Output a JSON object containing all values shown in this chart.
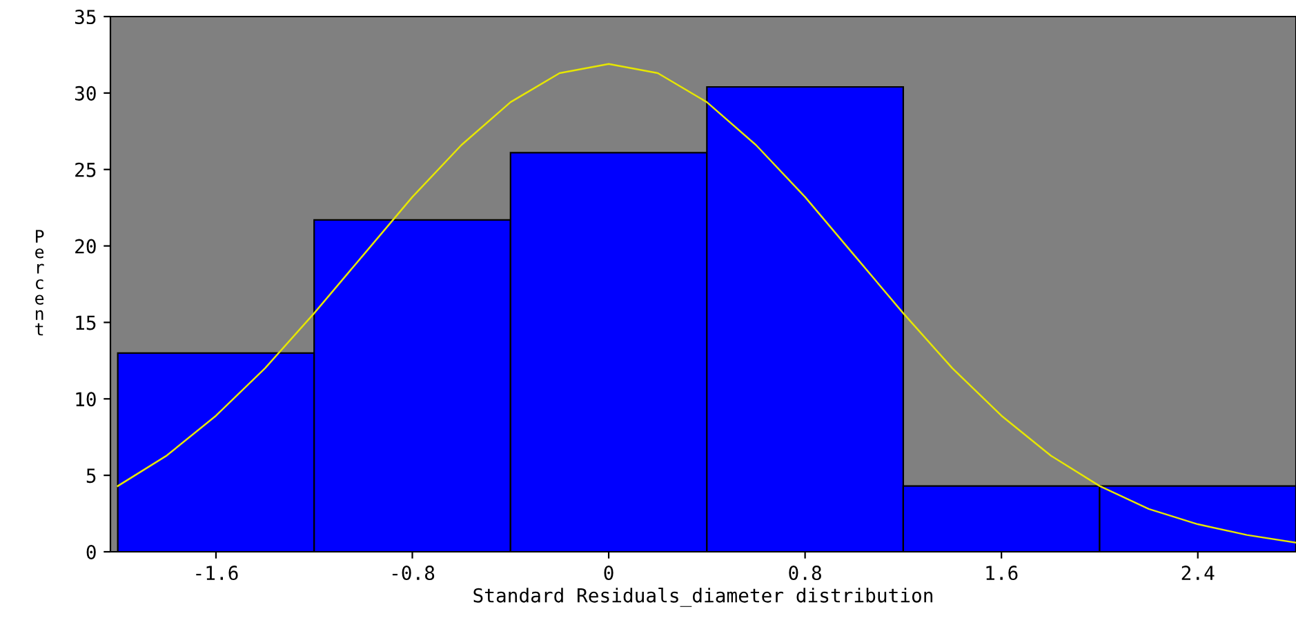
{
  "chart_data": {
    "type": "histogram",
    "xlabel": "Standard Residuals_diameter distribution",
    "ylabel": "Percent",
    "bins": [
      -2.0,
      -1.2,
      -0.4,
      0.4,
      1.2,
      2.0,
      2.8
    ],
    "values": [
      13.0,
      21.7,
      26.1,
      30.4,
      4.3,
      4.3
    ],
    "color": "#0000ff",
    "series": [
      {
        "type": "line",
        "color": "#e6e600",
        "x": [
          -2.0,
          -1.8,
          -1.6,
          -1.4,
          -1.2,
          -1.0,
          -0.8,
          -0.6,
          -0.4,
          -0.2,
          0.0,
          0.2,
          0.4,
          0.6,
          0.8,
          1.0,
          1.2,
          1.4,
          1.6,
          1.8,
          2.0,
          2.2,
          2.4,
          2.6,
          2.8
        ],
        "values": [
          4.3,
          6.3,
          8.9,
          12.0,
          15.6,
          19.4,
          23.2,
          26.6,
          29.4,
          31.3,
          31.9,
          31.3,
          29.4,
          26.6,
          23.2,
          19.4,
          15.6,
          12.0,
          8.9,
          6.3,
          4.3,
          2.8,
          1.8,
          1.1,
          0.6
        ]
      }
    ],
    "xlim": [
      -2.03,
      2.8
    ],
    "xticks": [
      -1.6,
      -0.8,
      0,
      0.8,
      1.6,
      2.4
    ],
    "ylim": [
      0,
      35
    ],
    "yticks": [
      0,
      5,
      10,
      15,
      20,
      25,
      30,
      35
    ],
    "grid": false,
    "legend": false
  }
}
